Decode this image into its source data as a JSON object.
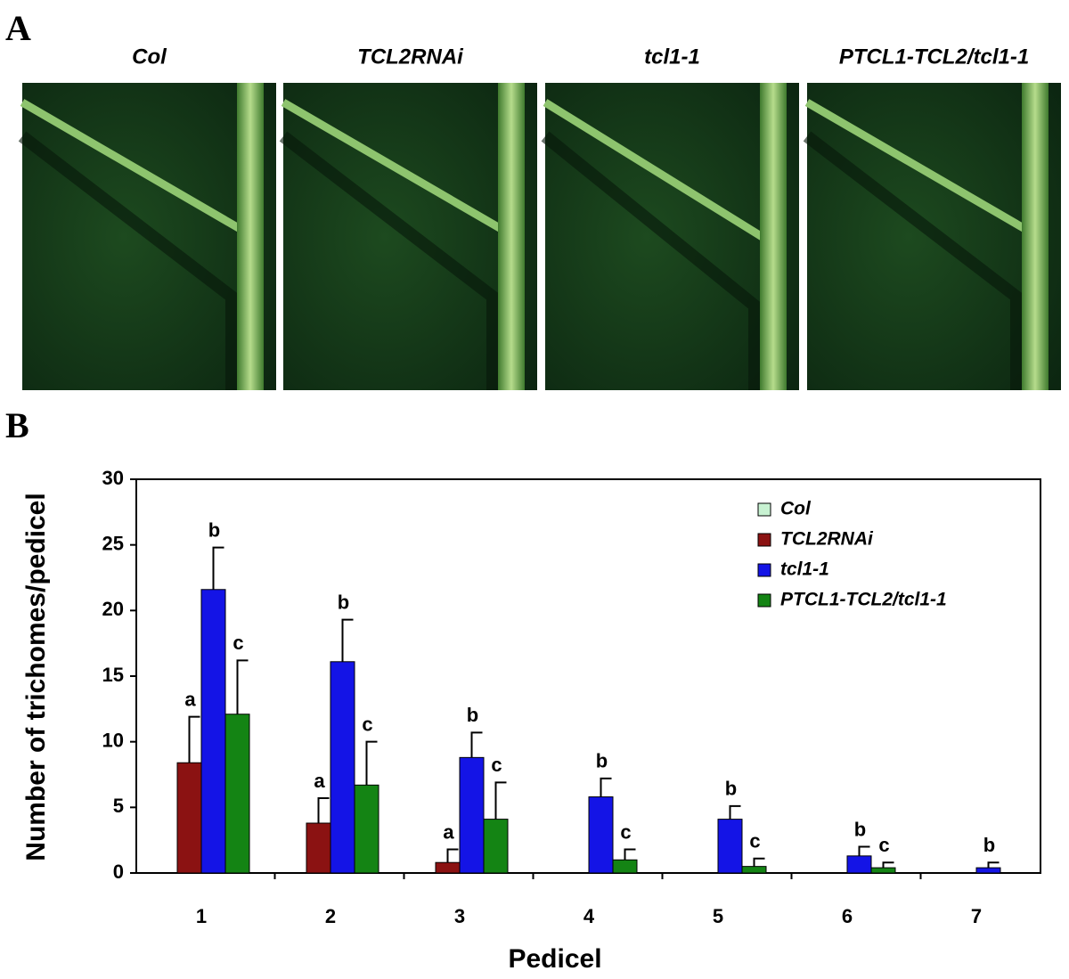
{
  "panel_labels": [
    "A",
    "B"
  ],
  "photos": [
    "Col",
    "TCL2RNAi",
    "tcl1-1",
    "PTCL1-TCL2/tcl1-1"
  ],
  "chart_data": {
    "type": "bar",
    "x_label": "Pedicel",
    "y_label": "Number of trichomes/pedicel",
    "categories": [
      "1",
      "2",
      "3",
      "4",
      "5",
      "6",
      "7"
    ],
    "series": [
      {
        "name": "Col",
        "color": "#c8f2d2",
        "values": [
          0,
          0,
          0,
          0,
          0,
          0,
          0
        ]
      },
      {
        "name": "TCL2RNAi",
        "color": "#8b1212",
        "values": [
          8.4,
          3.8,
          0.8,
          0,
          0,
          0,
          0
        ],
        "errors": [
          3.5,
          1.9,
          1.0,
          null,
          null,
          null,
          null
        ],
        "significance": [
          "a",
          "a",
          "a",
          null,
          null,
          null,
          null
        ]
      },
      {
        "name": "tcl1-1",
        "color": "#1414e6",
        "values": [
          21.6,
          16.1,
          8.8,
          5.8,
          4.1,
          1.3,
          0.4
        ],
        "errors": [
          3.2,
          3.2,
          1.9,
          1.4,
          1.0,
          0.7,
          0.4
        ],
        "significance": [
          "b",
          "b",
          "b",
          "b",
          "b",
          "b",
          "b"
        ]
      },
      {
        "name": "PTCL1-TCL2/tcl1-1",
        "color": "#148414",
        "values": [
          12.1,
          6.7,
          4.1,
          1.0,
          0.5,
          0.4,
          0
        ],
        "errors": [
          4.1,
          3.3,
          2.8,
          0.8,
          0.6,
          0.4,
          null
        ],
        "significance": [
          "c",
          "c",
          "c",
          "c",
          "c",
          "c",
          null
        ]
      }
    ],
    "ylim": [
      0,
      30
    ],
    "yticks": [
      0,
      5,
      10,
      15,
      20,
      25,
      30
    ],
    "legend": "upper right"
  }
}
